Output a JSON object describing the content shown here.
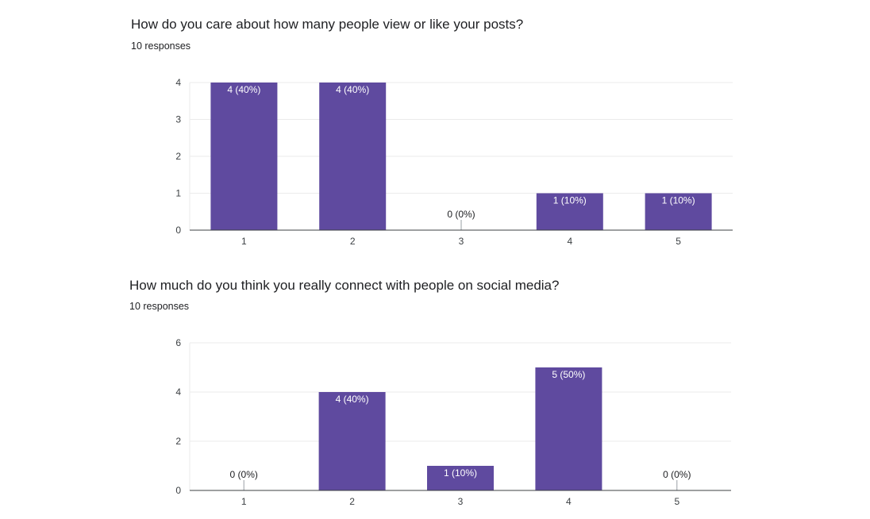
{
  "colors": {
    "bar": "#5f4a9f",
    "grid": "#ebebeb",
    "axis": "#3c4043"
  },
  "chart_data": [
    {
      "type": "bar",
      "title": "How do you care about how many people view or like your posts?",
      "subtitle": "10 responses",
      "categories": [
        "1",
        "2",
        "3",
        "4",
        "5"
      ],
      "values": [
        4,
        4,
        0,
        1,
        1
      ],
      "data_labels": [
        "4 (40%)",
        "4 (40%)",
        "0 (0%)",
        "1 (10%)",
        "1 (10%)"
      ],
      "yticks": [
        "0",
        "1",
        "2",
        "3",
        "4"
      ],
      "ylim": [
        0,
        4
      ],
      "grid": true
    },
    {
      "type": "bar",
      "title": "How much do you think you really connect with people on social media?",
      "subtitle": "10 responses",
      "categories": [
        "1",
        "2",
        "3",
        "4",
        "5"
      ],
      "values": [
        0,
        4,
        1,
        5,
        0
      ],
      "data_labels": [
        "0 (0%)",
        "4 (40%)",
        "1 (10%)",
        "5 (50%)",
        "0 (0%)"
      ],
      "yticks": [
        "0",
        "2",
        "4",
        "6"
      ],
      "ylim": [
        0,
        6
      ],
      "grid": true
    }
  ]
}
